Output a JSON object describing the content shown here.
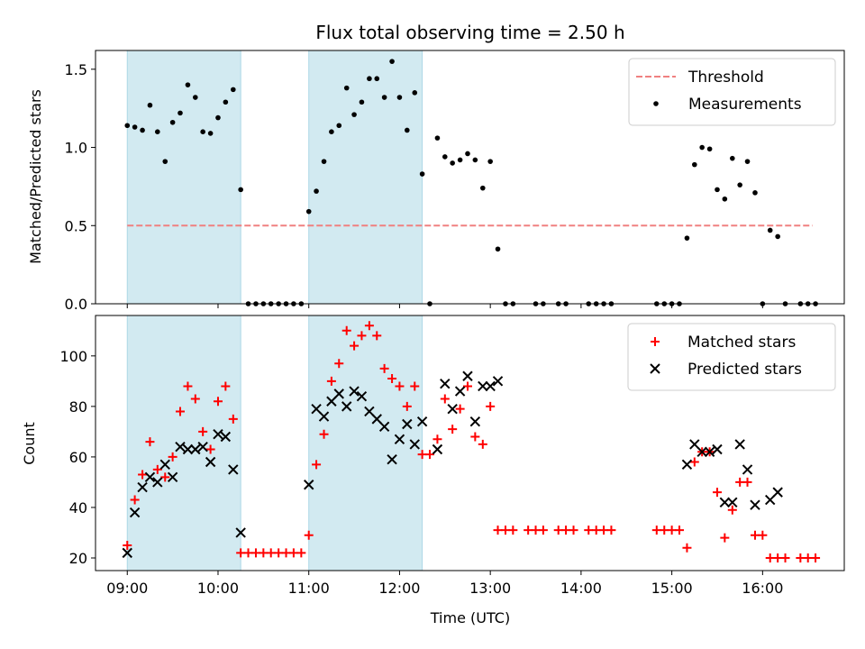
{
  "chart_data": [
    {
      "type": "scatter",
      "title": "Flux total observing time = 2.50 h",
      "ylabel": "Matched/Predicted stars",
      "xlabel": "",
      "ylim": [
        0,
        1.62
      ],
      "xlim": [
        8.65,
        16.9
      ],
      "yticks": [
        0.0,
        0.5,
        1.0,
        1.5
      ],
      "ytick_labels": [
        "0.0",
        "0.5",
        "1.0",
        "1.5"
      ],
      "shaded_intervals": [
        [
          9.0,
          10.25
        ],
        [
          11.0,
          12.25
        ]
      ],
      "shade_color": "#add8e6",
      "legend_position": "top-right",
      "threshold": {
        "name": "Threshold",
        "y": 0.5,
        "x_range": [
          9.0,
          16.55
        ],
        "color": "#f08080"
      },
      "series": [
        {
          "name": "Measurements",
          "color": "#000000",
          "points": [
            [
              9.0,
              1.14
            ],
            [
              9.083,
              1.13
            ],
            [
              9.167,
              1.11
            ],
            [
              9.25,
              1.27
            ],
            [
              9.333,
              1.1
            ],
            [
              9.417,
              0.91
            ],
            [
              9.5,
              1.16
            ],
            [
              9.583,
              1.22
            ],
            [
              9.667,
              1.4
            ],
            [
              9.75,
              1.32
            ],
            [
              9.833,
              1.1
            ],
            [
              9.917,
              1.09
            ],
            [
              10.0,
              1.19
            ],
            [
              10.083,
              1.29
            ],
            [
              10.167,
              1.37
            ],
            [
              10.25,
              0.73
            ],
            [
              10.333,
              0
            ],
            [
              10.417,
              0
            ],
            [
              10.5,
              0
            ],
            [
              10.583,
              0
            ],
            [
              10.667,
              0
            ],
            [
              10.75,
              0
            ],
            [
              10.833,
              0
            ],
            [
              10.917,
              0
            ],
            [
              11.0,
              0.59
            ],
            [
              11.083,
              0.72
            ],
            [
              11.167,
              0.91
            ],
            [
              11.25,
              1.1
            ],
            [
              11.333,
              1.14
            ],
            [
              11.417,
              1.38
            ],
            [
              11.5,
              1.21
            ],
            [
              11.583,
              1.29
            ],
            [
              11.667,
              1.44
            ],
            [
              11.75,
              1.44
            ],
            [
              11.833,
              1.32
            ],
            [
              11.917,
              1.55
            ],
            [
              12.0,
              1.32
            ],
            [
              12.083,
              1.11
            ],
            [
              12.167,
              1.35
            ],
            [
              12.25,
              0.83
            ],
            [
              12.333,
              0
            ],
            [
              12.417,
              1.06
            ],
            [
              12.5,
              0.94
            ],
            [
              12.583,
              0.9
            ],
            [
              12.667,
              0.92
            ],
            [
              12.75,
              0.96
            ],
            [
              12.833,
              0.92
            ],
            [
              12.917,
              0.74
            ],
            [
              13.0,
              0.91
            ],
            [
              13.083,
              0.35
            ],
            [
              13.167,
              0
            ],
            [
              13.25,
              0
            ],
            [
              13.5,
              0
            ],
            [
              13.583,
              0
            ],
            [
              13.75,
              0
            ],
            [
              13.833,
              0
            ],
            [
              14.083,
              0
            ],
            [
              14.167,
              0
            ],
            [
              14.25,
              0
            ],
            [
              14.333,
              0
            ],
            [
              14.833,
              0
            ],
            [
              14.917,
              0
            ],
            [
              15.0,
              0
            ],
            [
              15.083,
              0
            ],
            [
              15.167,
              0.42
            ],
            [
              15.25,
              0.89
            ],
            [
              15.333,
              1.0
            ],
            [
              15.417,
              0.99
            ],
            [
              15.5,
              0.73
            ],
            [
              15.583,
              0.67
            ],
            [
              15.667,
              0.93
            ],
            [
              15.75,
              0.76
            ],
            [
              15.833,
              0.91
            ],
            [
              15.917,
              0.71
            ],
            [
              16.0,
              0
            ],
            [
              16.083,
              0.47
            ],
            [
              16.167,
              0.43
            ],
            [
              16.25,
              0
            ],
            [
              16.417,
              0
            ],
            [
              16.5,
              0
            ],
            [
              16.583,
              0
            ]
          ]
        }
      ]
    },
    {
      "type": "scatter",
      "title": "",
      "xlabel": "Time (UTC)",
      "ylabel": "Count",
      "ylim": [
        15,
        116
      ],
      "xlim": [
        8.65,
        16.9
      ],
      "yticks": [
        20,
        40,
        60,
        80,
        100
      ],
      "ytick_labels": [
        "20",
        "40",
        "60",
        "80",
        "100"
      ],
      "xticks": [
        9,
        10,
        11,
        12,
        13,
        14,
        15,
        16
      ],
      "xtick_labels": [
        "09:00",
        "10:00",
        "11:00",
        "12:00",
        "13:00",
        "14:00",
        "15:00",
        "16:00"
      ],
      "shaded_intervals": [
        [
          9.0,
          10.25
        ],
        [
          11.0,
          12.25
        ]
      ],
      "shade_color": "#add8e6",
      "legend_position": "top-right",
      "series": [
        {
          "name": "Matched stars",
          "marker": "plus",
          "color": "#ff0000",
          "points": [
            [
              9.0,
              25
            ],
            [
              9.083,
              43
            ],
            [
              9.167,
              53
            ],
            [
              9.25,
              66
            ],
            [
              9.333,
              55
            ],
            [
              9.417,
              52
            ],
            [
              9.5,
              60
            ],
            [
              9.583,
              78
            ],
            [
              9.667,
              88
            ],
            [
              9.75,
              83
            ],
            [
              9.833,
              70
            ],
            [
              9.917,
              63
            ],
            [
              10.0,
              82
            ],
            [
              10.083,
              88
            ],
            [
              10.167,
              75
            ],
            [
              10.25,
              22
            ],
            [
              10.333,
              22
            ],
            [
              10.417,
              22
            ],
            [
              10.5,
              22
            ],
            [
              10.583,
              22
            ],
            [
              10.667,
              22
            ],
            [
              10.75,
              22
            ],
            [
              10.833,
              22
            ],
            [
              10.917,
              22
            ],
            [
              11.0,
              29
            ],
            [
              11.083,
              57
            ],
            [
              11.167,
              69
            ],
            [
              11.25,
              90
            ],
            [
              11.333,
              97
            ],
            [
              11.417,
              110
            ],
            [
              11.5,
              104
            ],
            [
              11.583,
              108
            ],
            [
              11.667,
              112
            ],
            [
              11.75,
              108
            ],
            [
              11.833,
              95
            ],
            [
              11.917,
              91
            ],
            [
              12.0,
              88
            ],
            [
              12.083,
              80
            ],
            [
              12.167,
              88
            ],
            [
              12.25,
              61
            ],
            [
              12.333,
              61
            ],
            [
              12.417,
              67
            ],
            [
              12.5,
              83
            ],
            [
              12.583,
              71
            ],
            [
              12.667,
              79
            ],
            [
              12.75,
              88
            ],
            [
              12.833,
              68
            ],
            [
              12.917,
              65
            ],
            [
              13.0,
              80
            ],
            [
              13.083,
              31
            ],
            [
              13.167,
              31
            ],
            [
              13.25,
              31
            ],
            [
              13.417,
              31
            ],
            [
              13.5,
              31
            ],
            [
              13.583,
              31
            ],
            [
              13.75,
              31
            ],
            [
              13.833,
              31
            ],
            [
              13.917,
              31
            ],
            [
              14.083,
              31
            ],
            [
              14.167,
              31
            ],
            [
              14.25,
              31
            ],
            [
              14.333,
              31
            ],
            [
              14.833,
              31
            ],
            [
              14.917,
              31
            ],
            [
              15.0,
              31
            ],
            [
              15.083,
              31
            ],
            [
              15.167,
              24
            ],
            [
              15.25,
              58
            ],
            [
              15.333,
              62
            ],
            [
              15.417,
              62
            ],
            [
              15.5,
              46
            ],
            [
              15.583,
              28
            ],
            [
              15.667,
              39
            ],
            [
              15.75,
              50
            ],
            [
              15.833,
              50
            ],
            [
              15.917,
              29
            ],
            [
              16.0,
              29
            ],
            [
              16.083,
              20
            ],
            [
              16.167,
              20
            ],
            [
              16.25,
              20
            ],
            [
              16.417,
              20
            ],
            [
              16.5,
              20
            ],
            [
              16.583,
              20
            ]
          ]
        },
        {
          "name": "Predicted stars",
          "marker": "x",
          "color": "#000000",
          "points": [
            [
              9.0,
              22
            ],
            [
              9.083,
              38
            ],
            [
              9.167,
              48
            ],
            [
              9.25,
              52
            ],
            [
              9.333,
              50
            ],
            [
              9.417,
              57
            ],
            [
              9.5,
              52
            ],
            [
              9.583,
              64
            ],
            [
              9.667,
              63
            ],
            [
              9.75,
              63
            ],
            [
              9.833,
              64
            ],
            [
              9.917,
              58
            ],
            [
              10.0,
              69
            ],
            [
              10.083,
              68
            ],
            [
              10.167,
              55
            ],
            [
              10.25,
              30
            ],
            [
              11.0,
              49
            ],
            [
              11.083,
              79
            ],
            [
              11.167,
              76
            ],
            [
              11.25,
              82
            ],
            [
              11.333,
              85
            ],
            [
              11.417,
              80
            ],
            [
              11.5,
              86
            ],
            [
              11.583,
              84
            ],
            [
              11.667,
              78
            ],
            [
              11.75,
              75
            ],
            [
              11.833,
              72
            ],
            [
              11.917,
              59
            ],
            [
              12.0,
              67
            ],
            [
              12.083,
              73
            ],
            [
              12.167,
              65
            ],
            [
              12.25,
              74
            ],
            [
              12.417,
              63
            ],
            [
              12.5,
              89
            ],
            [
              12.583,
              79
            ],
            [
              12.667,
              86
            ],
            [
              12.75,
              92
            ],
            [
              12.833,
              74
            ],
            [
              12.917,
              88
            ],
            [
              13.0,
              88
            ],
            [
              13.083,
              90
            ],
            [
              15.167,
              57
            ],
            [
              15.25,
              65
            ],
            [
              15.333,
              62
            ],
            [
              15.417,
              62
            ],
            [
              15.5,
              63
            ],
            [
              15.583,
              42
            ],
            [
              15.667,
              42
            ],
            [
              15.75,
              65
            ],
            [
              15.833,
              55
            ],
            [
              15.917,
              41
            ],
            [
              16.083,
              43
            ],
            [
              16.167,
              46
            ]
          ]
        }
      ]
    }
  ]
}
